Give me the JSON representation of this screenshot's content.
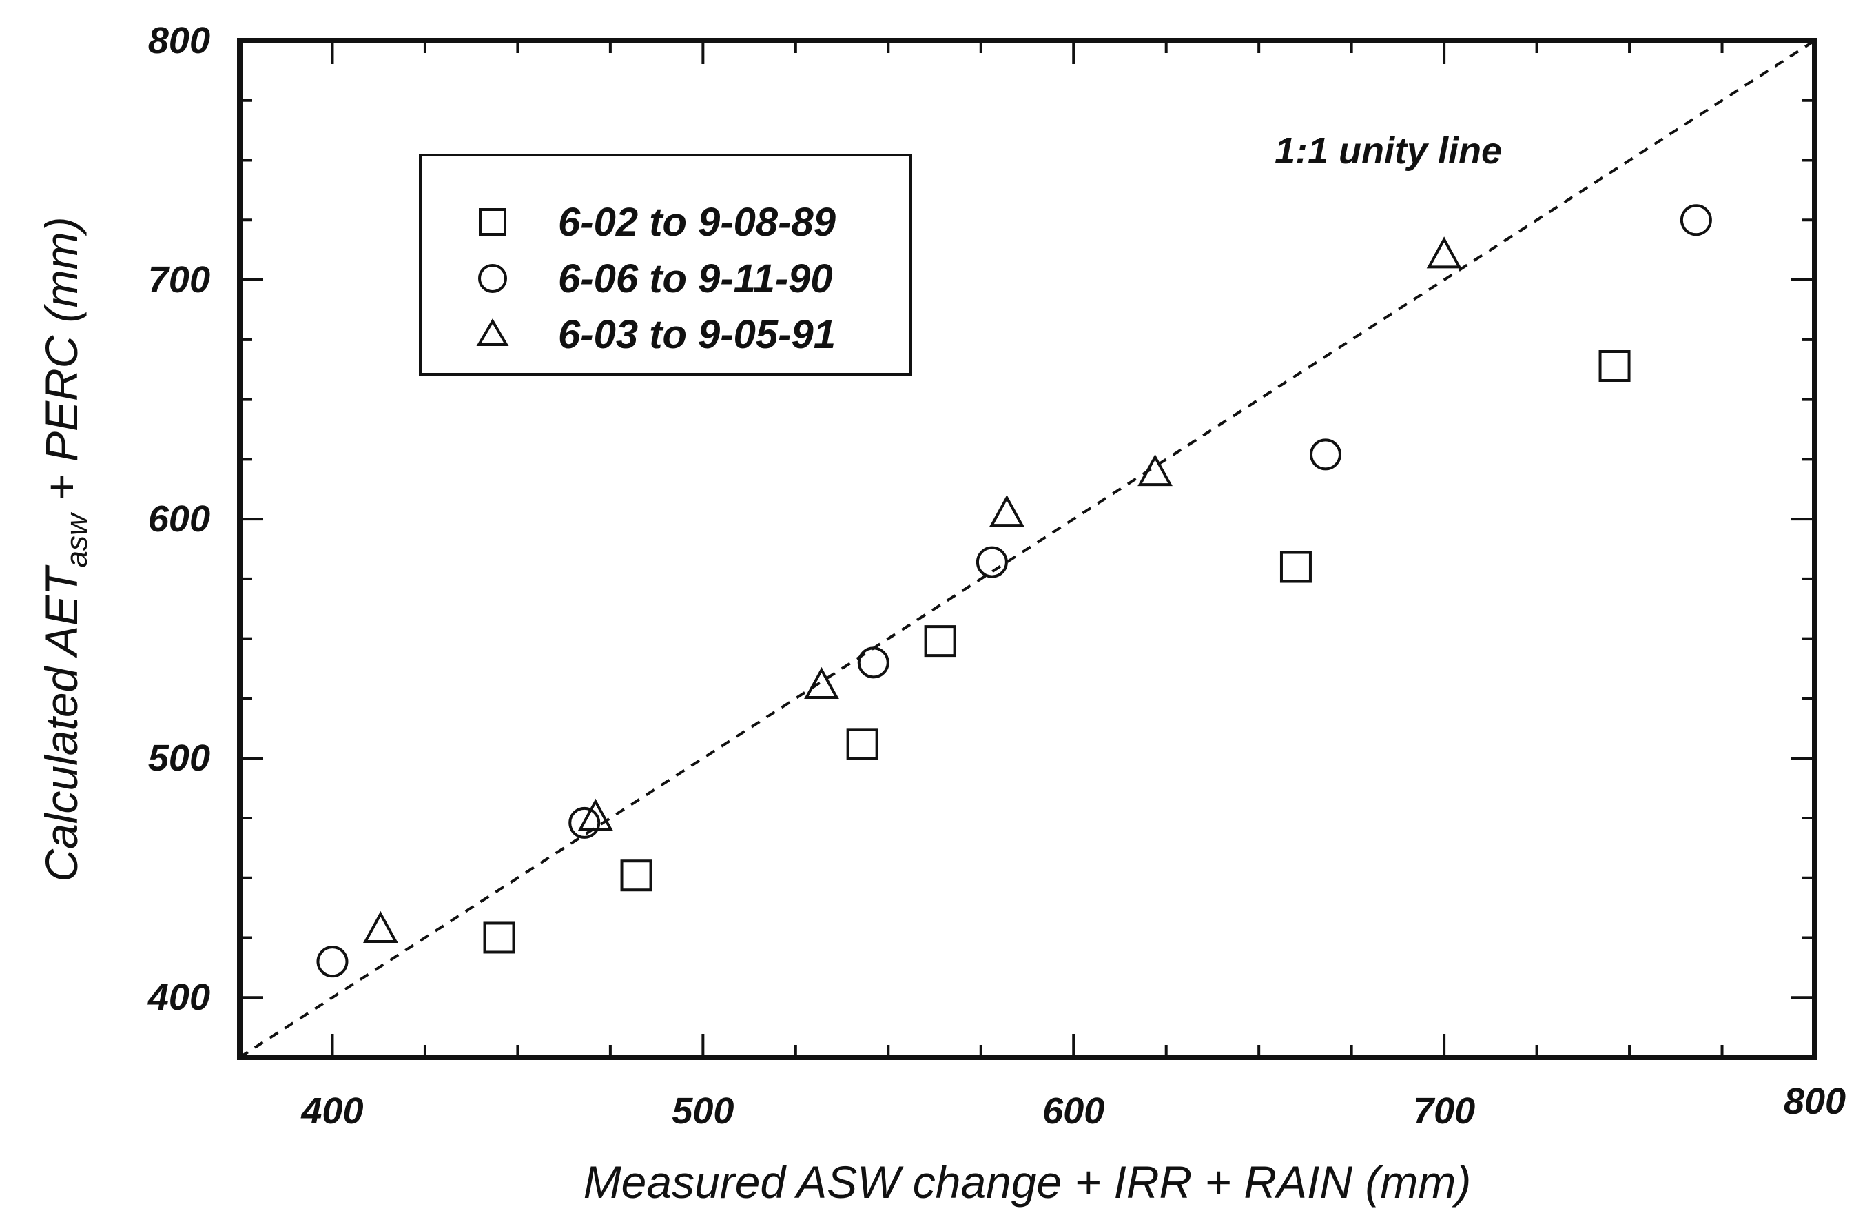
{
  "chart_data": {
    "type": "scatter",
    "title": "",
    "xlabel": "Measured ASW change + IRR + RAIN (mm)",
    "ylabel": {
      "prefix": "Calculated AET",
      "subscript": "asw",
      "suffix": " + PERC (mm)"
    },
    "xlim": [
      375,
      800
    ],
    "ylim": [
      375,
      800
    ],
    "x_ticks": [
      "400",
      "500",
      "600",
      "700",
      "800"
    ],
    "y_ticks": [
      "400",
      "500",
      "600",
      "700",
      "800"
    ],
    "grid": false,
    "legend_position": "top-left",
    "annotation": "1:1 unity line",
    "unity_line": {
      "style": "dashed",
      "from": [
        375,
        375
      ],
      "to": [
        800,
        800
      ]
    },
    "series": [
      {
        "name": "6-02 to 9-08-89",
        "marker": "square",
        "points": [
          {
            "x": 445,
            "y": 425
          },
          {
            "x": 482,
            "y": 451
          },
          {
            "x": 543,
            "y": 506
          },
          {
            "x": 564,
            "y": 549
          },
          {
            "x": 660,
            "y": 580
          },
          {
            "x": 746,
            "y": 664
          }
        ]
      },
      {
        "name": "6-06 to 9-11-90",
        "marker": "circle",
        "points": [
          {
            "x": 400,
            "y": 415
          },
          {
            "x": 468,
            "y": 473
          },
          {
            "x": 546,
            "y": 540
          },
          {
            "x": 578,
            "y": 582
          },
          {
            "x": 668,
            "y": 627
          },
          {
            "x": 768,
            "y": 725
          }
        ]
      },
      {
        "name": "6-03 to 9-05-91",
        "marker": "triangle",
        "points": [
          {
            "x": 413,
            "y": 428
          },
          {
            "x": 471,
            "y": 475
          },
          {
            "x": 532,
            "y": 530
          },
          {
            "x": 582,
            "y": 602
          },
          {
            "x": 622,
            "y": 619
          },
          {
            "x": 700,
            "y": 710
          }
        ]
      }
    ]
  }
}
